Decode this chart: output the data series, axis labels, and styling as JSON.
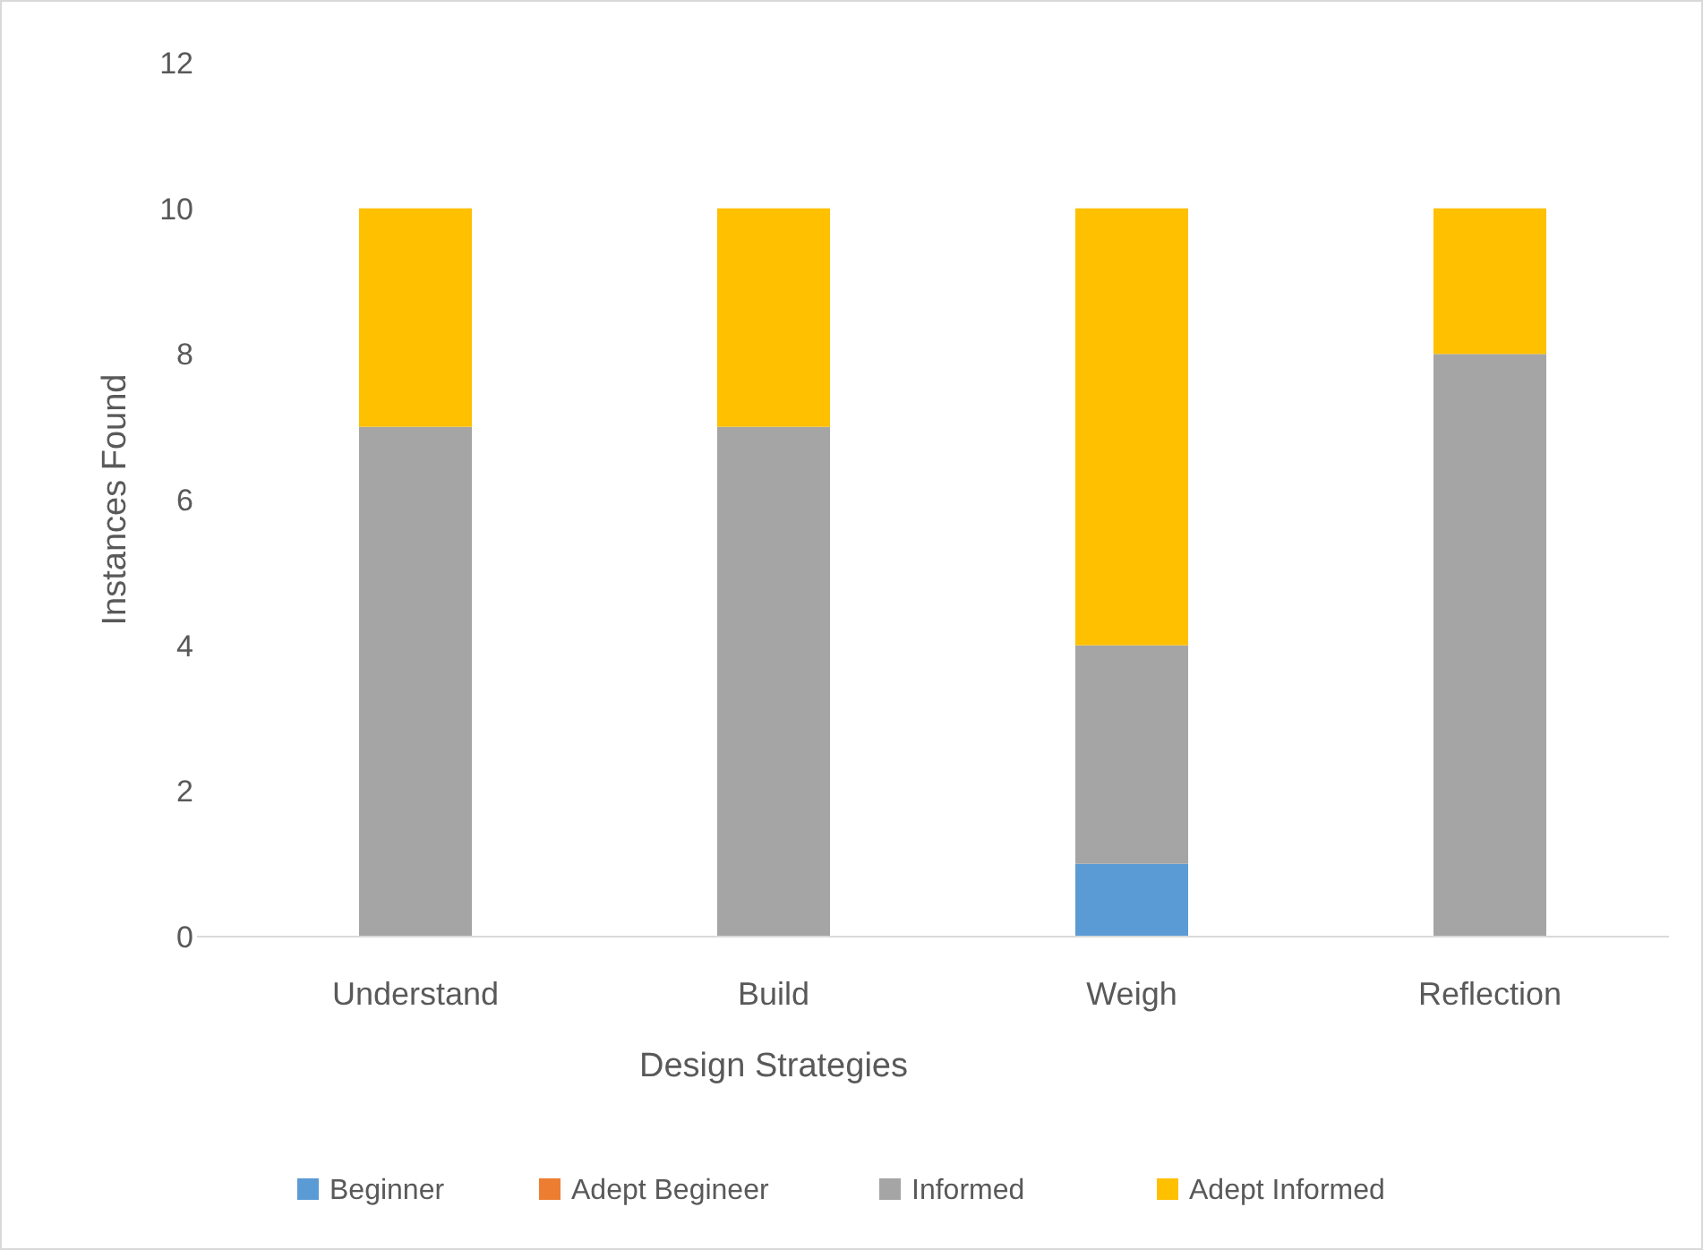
{
  "chart_data": {
    "type": "bar",
    "stacked": true,
    "xlabel": "Design Strategies",
    "ylabel": "Instances Found",
    "categories": [
      "Understand",
      "Build",
      "Weigh",
      "Reflection"
    ],
    "series": [
      {
        "name": "Beginner",
        "color": "#5b9bd5",
        "values": [
          0,
          0,
          1,
          0
        ]
      },
      {
        "name": "Adept Begineer",
        "color": "#ed7d31",
        "values": [
          0,
          0,
          0,
          0
        ]
      },
      {
        "name": "Informed",
        "color": "#a5a5a5",
        "values": [
          7,
          7,
          3,
          8
        ]
      },
      {
        "name": "Adept Informed",
        "color": "#ffc000",
        "values": [
          3,
          3,
          6,
          2
        ]
      }
    ],
    "ylim": [
      0,
      12
    ],
    "yticks": [
      0,
      2,
      4,
      6,
      8,
      10,
      12
    ],
    "grid": false,
    "legend": "bottom"
  }
}
